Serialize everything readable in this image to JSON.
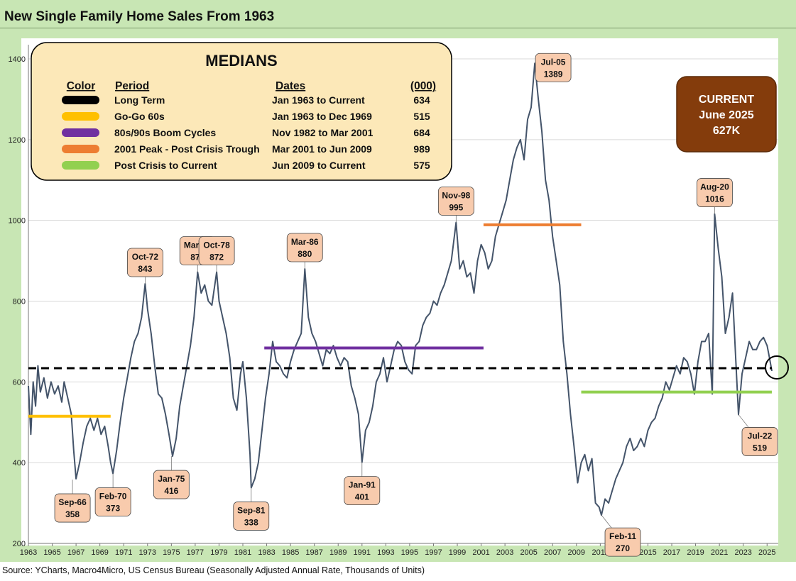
{
  "chart_data": {
    "type": "line",
    "title": "New Single Family Home Sales From 1963",
    "xlim": [
      1963,
      2025.7
    ],
    "ylim": [
      200,
      1400
    ],
    "ytick_step": 200,
    "xticks": [
      "1963",
      "1965",
      "1967",
      "1969",
      "1971",
      "1973",
      "1975",
      "1977",
      "1979",
      "1981",
      "1983",
      "1985",
      "1987",
      "1989",
      "1991",
      "1993",
      "1995",
      "1997",
      "1999",
      "2001",
      "2003",
      "2005",
      "2007",
      "2009",
      "2011",
      "2013",
      "2015",
      "2017",
      "2019",
      "2021",
      "2023",
      "2025"
    ],
    "series": [
      {
        "color": "#44546a",
        "points": [
          [
            1963.0,
            590
          ],
          [
            1963.2,
            470
          ],
          [
            1963.4,
            600
          ],
          [
            1963.6,
            540
          ],
          [
            1963.8,
            640
          ],
          [
            1964.0,
            575
          ],
          [
            1964.3,
            610
          ],
          [
            1964.6,
            560
          ],
          [
            1964.9,
            600
          ],
          [
            1965.2,
            570
          ],
          [
            1965.5,
            590
          ],
          [
            1965.8,
            550
          ],
          [
            1966.0,
            600
          ],
          [
            1966.3,
            560
          ],
          [
            1966.6,
            520
          ],
          [
            1966.8,
            430
          ],
          [
            1967.0,
            360
          ],
          [
            1967.3,
            400
          ],
          [
            1967.6,
            450
          ],
          [
            1967.9,
            490
          ],
          [
            1968.2,
            510
          ],
          [
            1968.5,
            480
          ],
          [
            1968.8,
            510
          ],
          [
            1969.1,
            470
          ],
          [
            1969.4,
            490
          ],
          [
            1969.7,
            440
          ],
          [
            1969.9,
            400
          ],
          [
            1970.1,
            373
          ],
          [
            1970.4,
            430
          ],
          [
            1970.7,
            500
          ],
          [
            1971.0,
            560
          ],
          [
            1971.3,
            610
          ],
          [
            1971.6,
            660
          ],
          [
            1971.9,
            700
          ],
          [
            1972.2,
            720
          ],
          [
            1972.5,
            760
          ],
          [
            1972.8,
            843
          ],
          [
            1973.0,
            780
          ],
          [
            1973.3,
            720
          ],
          [
            1973.6,
            640
          ],
          [
            1973.9,
            570
          ],
          [
            1974.2,
            560
          ],
          [
            1974.5,
            520
          ],
          [
            1974.8,
            470
          ],
          [
            1975.1,
            416
          ],
          [
            1975.4,
            460
          ],
          [
            1975.7,
            540
          ],
          [
            1976.0,
            590
          ],
          [
            1976.3,
            640
          ],
          [
            1976.6,
            690
          ],
          [
            1976.9,
            760
          ],
          [
            1977.2,
            872
          ],
          [
            1977.5,
            820
          ],
          [
            1977.8,
            840
          ],
          [
            1978.1,
            800
          ],
          [
            1978.4,
            790
          ],
          [
            1978.8,
            872
          ],
          [
            1979.0,
            800
          ],
          [
            1979.3,
            760
          ],
          [
            1979.6,
            720
          ],
          [
            1979.9,
            660
          ],
          [
            1980.2,
            560
          ],
          [
            1980.5,
            530
          ],
          [
            1980.8,
            620
          ],
          [
            1981.0,
            650
          ],
          [
            1981.3,
            560
          ],
          [
            1981.6,
            420
          ],
          [
            1981.7,
            338
          ],
          [
            1982.0,
            360
          ],
          [
            1982.3,
            400
          ],
          [
            1982.6,
            480
          ],
          [
            1982.9,
            560
          ],
          [
            1983.2,
            620
          ],
          [
            1983.5,
            700
          ],
          [
            1983.8,
            650
          ],
          [
            1984.1,
            640
          ],
          [
            1984.4,
            620
          ],
          [
            1984.7,
            610
          ],
          [
            1985.0,
            650
          ],
          [
            1985.3,
            680
          ],
          [
            1985.6,
            700
          ],
          [
            1985.9,
            720
          ],
          [
            1986.2,
            880
          ],
          [
            1986.5,
            760
          ],
          [
            1986.8,
            720
          ],
          [
            1987.1,
            700
          ],
          [
            1987.4,
            670
          ],
          [
            1987.7,
            640
          ],
          [
            1988.0,
            680
          ],
          [
            1988.3,
            670
          ],
          [
            1988.6,
            690
          ],
          [
            1988.9,
            660
          ],
          [
            1989.2,
            640
          ],
          [
            1989.5,
            660
          ],
          [
            1989.8,
            650
          ],
          [
            1990.1,
            590
          ],
          [
            1990.4,
            560
          ],
          [
            1990.7,
            520
          ],
          [
            1991.0,
            401
          ],
          [
            1991.3,
            480
          ],
          [
            1991.6,
            500
          ],
          [
            1991.9,
            540
          ],
          [
            1992.2,
            600
          ],
          [
            1992.5,
            620
          ],
          [
            1992.8,
            660
          ],
          [
            1993.1,
            600
          ],
          [
            1993.4,
            640
          ],
          [
            1993.7,
            680
          ],
          [
            1994.0,
            700
          ],
          [
            1994.3,
            690
          ],
          [
            1994.6,
            650
          ],
          [
            1994.9,
            630
          ],
          [
            1995.2,
            620
          ],
          [
            1995.5,
            690
          ],
          [
            1995.8,
            700
          ],
          [
            1996.1,
            740
          ],
          [
            1996.4,
            760
          ],
          [
            1996.7,
            770
          ],
          [
            1997.0,
            800
          ],
          [
            1997.3,
            790
          ],
          [
            1997.6,
            820
          ],
          [
            1997.9,
            840
          ],
          [
            1998.2,
            870
          ],
          [
            1998.5,
            900
          ],
          [
            1998.9,
            995
          ],
          [
            1999.2,
            880
          ],
          [
            1999.5,
            900
          ],
          [
            1999.8,
            860
          ],
          [
            2000.1,
            870
          ],
          [
            2000.4,
            820
          ],
          [
            2000.7,
            900
          ],
          [
            2001.0,
            940
          ],
          [
            2001.3,
            920
          ],
          [
            2001.6,
            880
          ],
          [
            2001.9,
            900
          ],
          [
            2002.2,
            960
          ],
          [
            2002.5,
            990
          ],
          [
            2002.8,
            1020
          ],
          [
            2003.1,
            1050
          ],
          [
            2003.4,
            1100
          ],
          [
            2003.7,
            1150
          ],
          [
            2004.0,
            1180
          ],
          [
            2004.3,
            1200
          ],
          [
            2004.6,
            1150
          ],
          [
            2004.9,
            1250
          ],
          [
            2005.2,
            1280
          ],
          [
            2005.5,
            1389
          ],
          [
            2005.8,
            1300
          ],
          [
            2006.1,
            1220
          ],
          [
            2006.4,
            1100
          ],
          [
            2006.7,
            1050
          ],
          [
            2007.0,
            960
          ],
          [
            2007.3,
            900
          ],
          [
            2007.6,
            840
          ],
          [
            2007.9,
            700
          ],
          [
            2008.2,
            620
          ],
          [
            2008.5,
            520
          ],
          [
            2008.8,
            440
          ],
          [
            2009.1,
            350
          ],
          [
            2009.4,
            400
          ],
          [
            2009.7,
            420
          ],
          [
            2010.0,
            380
          ],
          [
            2010.3,
            410
          ],
          [
            2010.6,
            300
          ],
          [
            2010.9,
            290
          ],
          [
            2011.1,
            270
          ],
          [
            2011.4,
            310
          ],
          [
            2011.7,
            300
          ],
          [
            2012.0,
            330
          ],
          [
            2012.3,
            360
          ],
          [
            2012.6,
            380
          ],
          [
            2012.9,
            400
          ],
          [
            2013.2,
            440
          ],
          [
            2013.5,
            460
          ],
          [
            2013.8,
            430
          ],
          [
            2014.1,
            440
          ],
          [
            2014.4,
            460
          ],
          [
            2014.7,
            440
          ],
          [
            2015.0,
            480
          ],
          [
            2015.3,
            500
          ],
          [
            2015.6,
            510
          ],
          [
            2015.9,
            540
          ],
          [
            2016.2,
            560
          ],
          [
            2016.5,
            600
          ],
          [
            2016.8,
            580
          ],
          [
            2017.1,
            610
          ],
          [
            2017.4,
            640
          ],
          [
            2017.7,
            620
          ],
          [
            2018.0,
            660
          ],
          [
            2018.3,
            650
          ],
          [
            2018.6,
            620
          ],
          [
            2018.9,
            570
          ],
          [
            2019.2,
            650
          ],
          [
            2019.5,
            700
          ],
          [
            2019.8,
            700
          ],
          [
            2020.1,
            720
          ],
          [
            2020.4,
            570
          ],
          [
            2020.6,
            1016
          ],
          [
            2020.9,
            930
          ],
          [
            2021.2,
            860
          ],
          [
            2021.5,
            720
          ],
          [
            2021.8,
            760
          ],
          [
            2022.1,
            820
          ],
          [
            2022.4,
            640
          ],
          [
            2022.6,
            519
          ],
          [
            2022.9,
            620
          ],
          [
            2023.2,
            660
          ],
          [
            2023.5,
            700
          ],
          [
            2023.8,
            680
          ],
          [
            2024.1,
            680
          ],
          [
            2024.4,
            700
          ],
          [
            2024.7,
            710
          ],
          [
            2025.0,
            690
          ],
          [
            2025.2,
            660
          ],
          [
            2025.4,
            627
          ]
        ]
      }
    ],
    "medians": [
      {
        "label": "Long Term",
        "value": 634,
        "x_from": 1963,
        "x_to": 2025.4,
        "color": "#000000",
        "style": "dashed"
      },
      {
        "label": "Go-Go 60s",
        "value": 515,
        "x_from": 1963,
        "x_to": 1969.9,
        "color": "#ffc000",
        "style": "solid"
      },
      {
        "label": "80s/90s Boom Cycles",
        "value": 684,
        "x_from": 1982.8,
        "x_to": 2001.2,
        "color": "#7030a0",
        "style": "solid"
      },
      {
        "label": "2001 Peak - Post Crisis Trough",
        "value": 989,
        "x_from": 2001.2,
        "x_to": 2009.4,
        "color": "#ed7d31",
        "style": "solid"
      },
      {
        "label": "Post Crisis to Current",
        "value": 575,
        "x_from": 2009.4,
        "x_to": 2025.4,
        "color": "#92d050",
        "style": "solid"
      }
    ],
    "annotations": [
      {
        "date": "Sep-66",
        "value": "358",
        "x": 1966.7,
        "y": 358,
        "pos": "below"
      },
      {
        "date": "Feb-70",
        "value": "373",
        "x": 1970.1,
        "y": 373,
        "pos": "below"
      },
      {
        "date": "Oct-72",
        "value": "843",
        "x": 1972.8,
        "y": 843,
        "pos": "above"
      },
      {
        "date": "Jan-75",
        "value": "416",
        "x": 1975.0,
        "y": 416,
        "pos": "below"
      },
      {
        "date": "Mar-77",
        "value": "872",
        "x": 1977.2,
        "y": 872,
        "pos": "above"
      },
      {
        "date": "Oct-78",
        "value": "872",
        "x": 1978.8,
        "y": 872,
        "pos": "above"
      },
      {
        "date": "Sep-81",
        "value": "338",
        "x": 1981.7,
        "y": 338,
        "pos": "below"
      },
      {
        "date": "Mar-86",
        "value": "880",
        "x": 1986.2,
        "y": 880,
        "pos": "above"
      },
      {
        "date": "Jan-91",
        "value": "401",
        "x": 1991.0,
        "y": 401,
        "pos": "below"
      },
      {
        "date": "Nov-98",
        "value": "995",
        "x": 1998.9,
        "y": 995,
        "pos": "above"
      },
      {
        "date": "Jul-05",
        "value": "1389",
        "x": 2005.5,
        "y": 1389,
        "pos": "right"
      },
      {
        "date": "Feb-11",
        "value": "270",
        "x": 2011.1,
        "y": 270,
        "pos": "below-right"
      },
      {
        "date": "Aug-20",
        "value": "1016",
        "x": 2020.6,
        "y": 1016,
        "pos": "above"
      },
      {
        "date": "Jul-22",
        "value": "519",
        "x": 2022.6,
        "y": 519,
        "pos": "below-right"
      }
    ]
  },
  "legend": {
    "title": "MEDIANS",
    "headers": {
      "color": "Color",
      "period": "Period",
      "dates": "Dates",
      "value": "(000)"
    },
    "rows": [
      {
        "color": "#000000",
        "period": "Long Term",
        "dates": "Jan 1963 to Current",
        "value": "634"
      },
      {
        "color": "#ffc000",
        "period": "Go-Go 60s",
        "dates": "Jan 1963 to Dec 1969",
        "value": "515"
      },
      {
        "color": "#7030a0",
        "period": "80s/90s Boom Cycles",
        "dates": "Nov 1982 to Mar 2001",
        "value": "684"
      },
      {
        "color": "#ed7d31",
        "period": "2001 Peak - Post Crisis Trough",
        "dates": "Mar 2001 to Jun 2009",
        "value": "989"
      },
      {
        "color": "#92d050",
        "period": "Post Crisis to Current",
        "dates": "Jun 2009 to Current",
        "value": "575"
      }
    ]
  },
  "current_box": {
    "line1": "CURRENT",
    "line2": "June 2025",
    "line3": "627K",
    "color": "#843c0c"
  },
  "source": "Source: YCharts, Macro4Micro, US Census Bureau (Seasonally Adjusted Annual Rate, Thousands of Units)"
}
